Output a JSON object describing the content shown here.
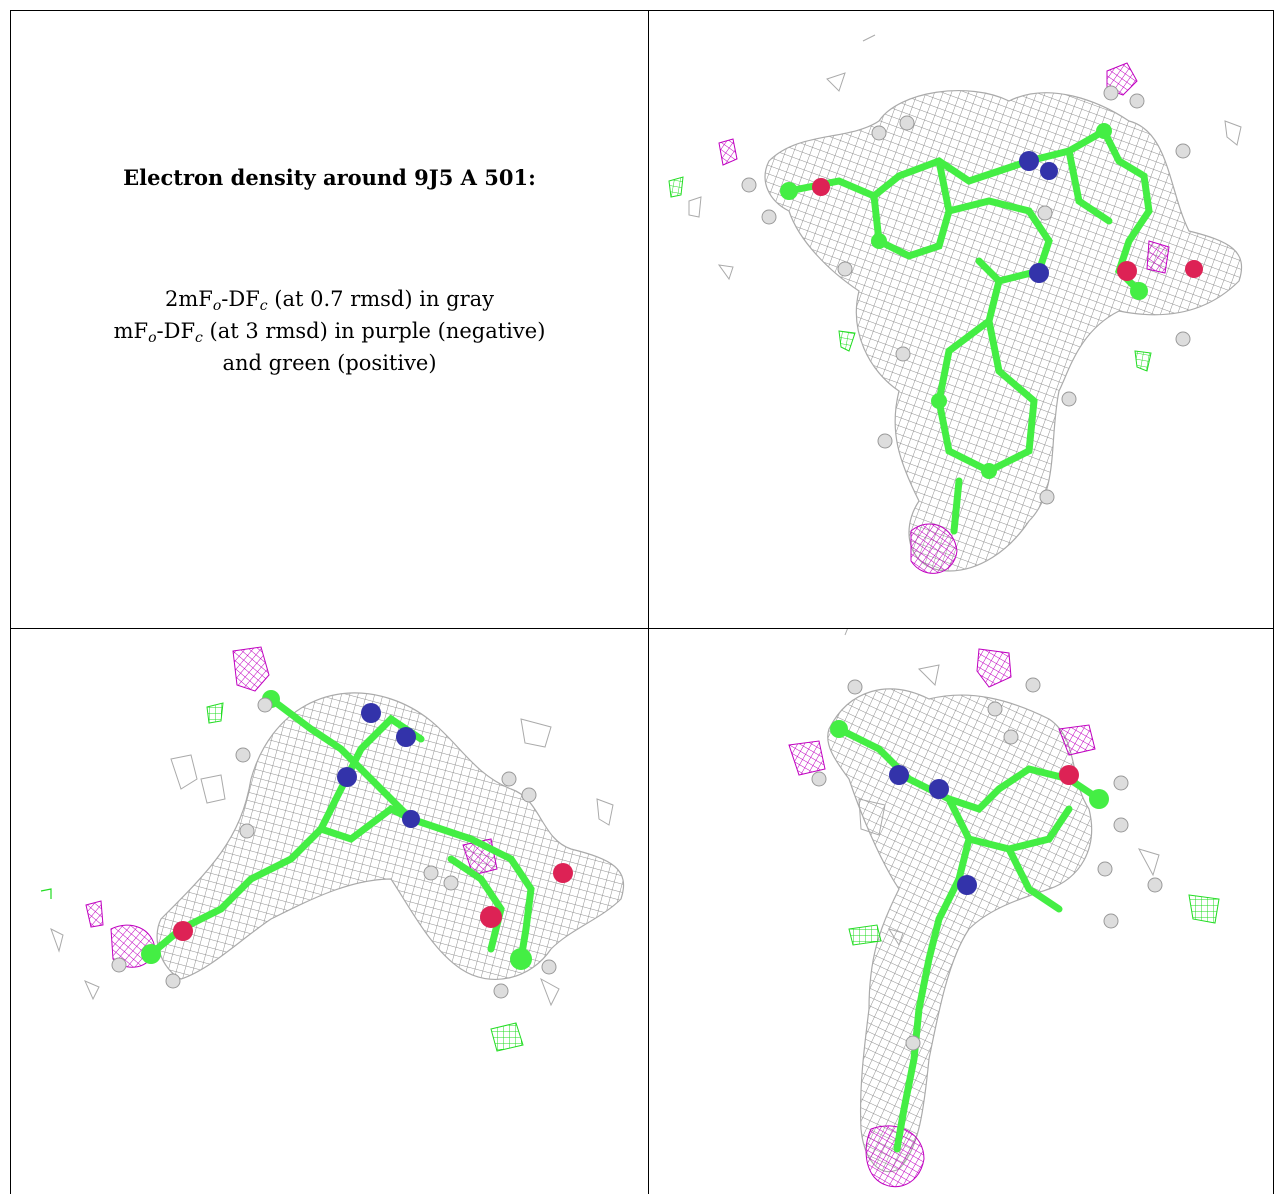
{
  "caption": {
    "title": "Electron density around 9J5 A 501:",
    "line1": {
      "prefix": "2mF",
      "sub1": "o",
      "mid": "-DF",
      "sub2": "c",
      "suffix": " (at 0.7 rmsd) in gray"
    },
    "line2": {
      "prefix": "mF",
      "sub1": "o",
      "mid": "-DF",
      "sub2": "c",
      "suffix": " (at 3 rmsd) in purple (negative)"
    },
    "line3": "and green (positive)"
  },
  "colors": {
    "mesh_2fofc": "#9a9a9a",
    "mesh_negative": "#c000c0",
    "mesh_positive": "#22dd22",
    "carbon": "#44ee44",
    "nitrogen": "#3333aa",
    "oxygen": "#dd2255",
    "hydrogen": "#dddddd"
  },
  "views": {
    "top_right": "density-view-1",
    "bottom_left": "density-view-2",
    "bottom_right": "density-view-3"
  }
}
